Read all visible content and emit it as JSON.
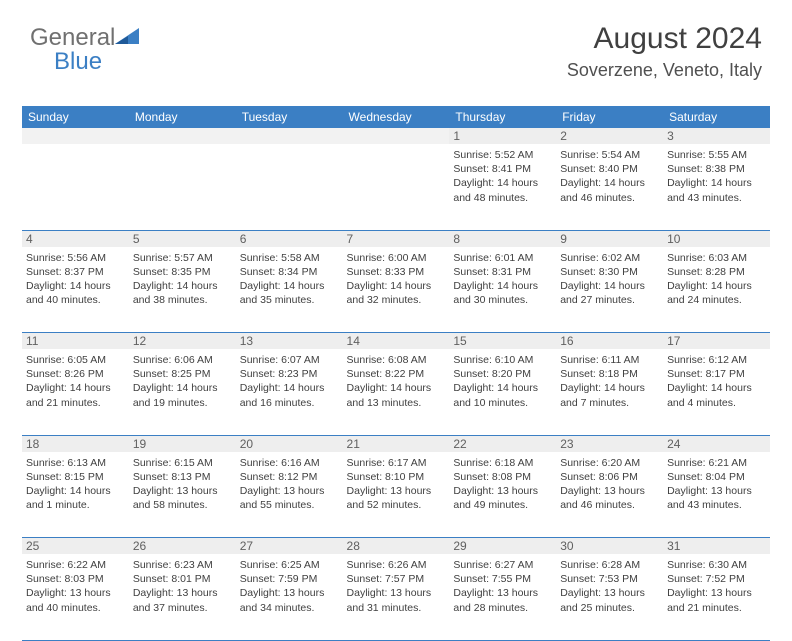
{
  "brand": {
    "text1": "General",
    "text2": "Blue"
  },
  "title": "August 2024",
  "location": "Soverzene, Veneto, Italy",
  "day_headers": [
    "Sunday",
    "Monday",
    "Tuesday",
    "Wednesday",
    "Thursday",
    "Friday",
    "Saturday"
  ],
  "colors": {
    "header_bg": "#3b7fc4",
    "header_fg": "#ffffff",
    "daynum_bg": "#eeeeee",
    "border": "#3b7fc4",
    "text": "#404040",
    "logo_gray": "#707070",
    "logo_blue": "#3b7fc4"
  },
  "weeks": [
    [
      null,
      null,
      null,
      null,
      {
        "n": "1",
        "sr": "5:52 AM",
        "ss": "8:41 PM",
        "dl": "14 hours and 48 minutes."
      },
      {
        "n": "2",
        "sr": "5:54 AM",
        "ss": "8:40 PM",
        "dl": "14 hours and 46 minutes."
      },
      {
        "n": "3",
        "sr": "5:55 AM",
        "ss": "8:38 PM",
        "dl": "14 hours and 43 minutes."
      }
    ],
    [
      {
        "n": "4",
        "sr": "5:56 AM",
        "ss": "8:37 PM",
        "dl": "14 hours and 40 minutes."
      },
      {
        "n": "5",
        "sr": "5:57 AM",
        "ss": "8:35 PM",
        "dl": "14 hours and 38 minutes."
      },
      {
        "n": "6",
        "sr": "5:58 AM",
        "ss": "8:34 PM",
        "dl": "14 hours and 35 minutes."
      },
      {
        "n": "7",
        "sr": "6:00 AM",
        "ss": "8:33 PM",
        "dl": "14 hours and 32 minutes."
      },
      {
        "n": "8",
        "sr": "6:01 AM",
        "ss": "8:31 PM",
        "dl": "14 hours and 30 minutes."
      },
      {
        "n": "9",
        "sr": "6:02 AM",
        "ss": "8:30 PM",
        "dl": "14 hours and 27 minutes."
      },
      {
        "n": "10",
        "sr": "6:03 AM",
        "ss": "8:28 PM",
        "dl": "14 hours and 24 minutes."
      }
    ],
    [
      {
        "n": "11",
        "sr": "6:05 AM",
        "ss": "8:26 PM",
        "dl": "14 hours and 21 minutes."
      },
      {
        "n": "12",
        "sr": "6:06 AM",
        "ss": "8:25 PM",
        "dl": "14 hours and 19 minutes."
      },
      {
        "n": "13",
        "sr": "6:07 AM",
        "ss": "8:23 PM",
        "dl": "14 hours and 16 minutes."
      },
      {
        "n": "14",
        "sr": "6:08 AM",
        "ss": "8:22 PM",
        "dl": "14 hours and 13 minutes."
      },
      {
        "n": "15",
        "sr": "6:10 AM",
        "ss": "8:20 PM",
        "dl": "14 hours and 10 minutes."
      },
      {
        "n": "16",
        "sr": "6:11 AM",
        "ss": "8:18 PM",
        "dl": "14 hours and 7 minutes."
      },
      {
        "n": "17",
        "sr": "6:12 AM",
        "ss": "8:17 PM",
        "dl": "14 hours and 4 minutes."
      }
    ],
    [
      {
        "n": "18",
        "sr": "6:13 AM",
        "ss": "8:15 PM",
        "dl": "14 hours and 1 minute."
      },
      {
        "n": "19",
        "sr": "6:15 AM",
        "ss": "8:13 PM",
        "dl": "13 hours and 58 minutes."
      },
      {
        "n": "20",
        "sr": "6:16 AM",
        "ss": "8:12 PM",
        "dl": "13 hours and 55 minutes."
      },
      {
        "n": "21",
        "sr": "6:17 AM",
        "ss": "8:10 PM",
        "dl": "13 hours and 52 minutes."
      },
      {
        "n": "22",
        "sr": "6:18 AM",
        "ss": "8:08 PM",
        "dl": "13 hours and 49 minutes."
      },
      {
        "n": "23",
        "sr": "6:20 AM",
        "ss": "8:06 PM",
        "dl": "13 hours and 46 minutes."
      },
      {
        "n": "24",
        "sr": "6:21 AM",
        "ss": "8:04 PM",
        "dl": "13 hours and 43 minutes."
      }
    ],
    [
      {
        "n": "25",
        "sr": "6:22 AM",
        "ss": "8:03 PM",
        "dl": "13 hours and 40 minutes."
      },
      {
        "n": "26",
        "sr": "6:23 AM",
        "ss": "8:01 PM",
        "dl": "13 hours and 37 minutes."
      },
      {
        "n": "27",
        "sr": "6:25 AM",
        "ss": "7:59 PM",
        "dl": "13 hours and 34 minutes."
      },
      {
        "n": "28",
        "sr": "6:26 AM",
        "ss": "7:57 PM",
        "dl": "13 hours and 31 minutes."
      },
      {
        "n": "29",
        "sr": "6:27 AM",
        "ss": "7:55 PM",
        "dl": "13 hours and 28 minutes."
      },
      {
        "n": "30",
        "sr": "6:28 AM",
        "ss": "7:53 PM",
        "dl": "13 hours and 25 minutes."
      },
      {
        "n": "31",
        "sr": "6:30 AM",
        "ss": "7:52 PM",
        "dl": "13 hours and 21 minutes."
      }
    ]
  ],
  "labels": {
    "sunrise": "Sunrise:",
    "sunset": "Sunset:",
    "daylight": "Daylight:"
  }
}
